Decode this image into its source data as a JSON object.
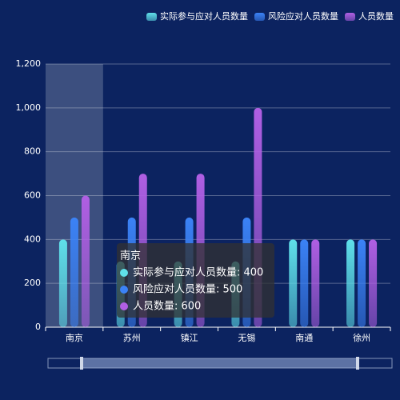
{
  "chart_data": {
    "type": "bar",
    "categories": [
      "南京",
      "苏州",
      "镇江",
      "无锡",
      "南通",
      "徐州"
    ],
    "series": [
      {
        "name": "实际参与应对人员数量",
        "color": "#5fe0ea",
        "values": [
          400,
          300,
          300,
          300,
          400,
          400
        ]
      },
      {
        "name": "风险应对人员数量",
        "color": "#3b82f6",
        "values": [
          500,
          500,
          500,
          500,
          400,
          400
        ]
      },
      {
        "name": "人员数量",
        "color": "#b05fe3",
        "values": [
          600,
          700,
          700,
          1000,
          400,
          400
        ]
      }
    ],
    "ylim": [
      0,
      1200
    ],
    "yticks": [
      0,
      200,
      400,
      600,
      800,
      {
        "value": 1000,
        "label": "1,000"
      },
      {
        "value": 1200,
        "label": "1,200"
      }
    ],
    "grid": true,
    "legend": "top-right",
    "tooltip": {
      "title": "南京",
      "items": [
        "实际参与应对人员数量: 400",
        "风险应对人员数量: 500",
        "人员数量: 600"
      ]
    }
  }
}
